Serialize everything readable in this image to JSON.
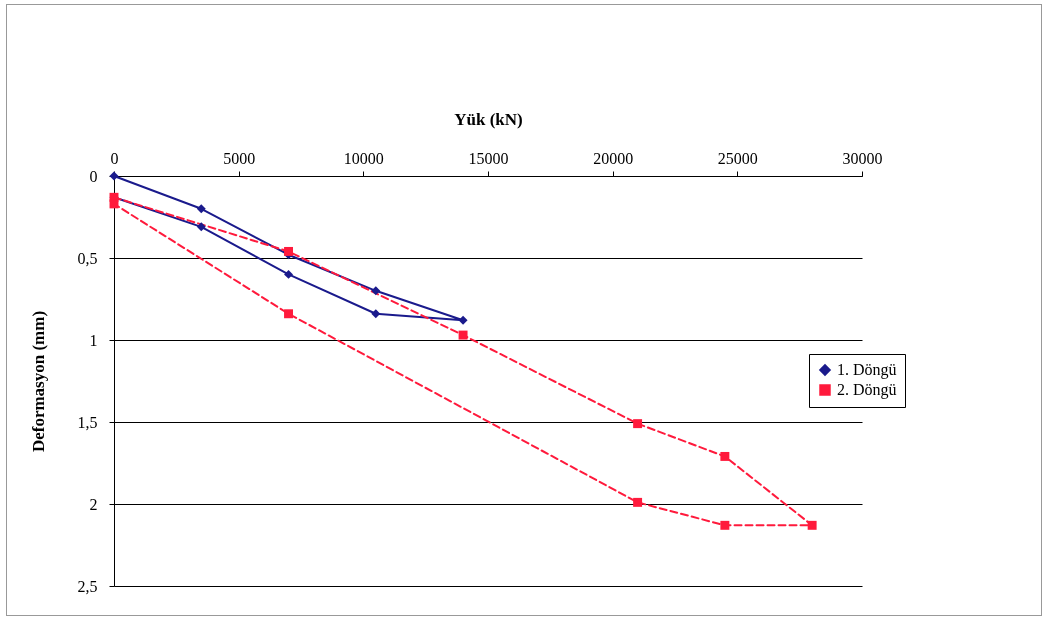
{
  "chart_data": {
    "type": "line",
    "xlabel": "Yük (kN)",
    "ylabel": "Deformasyon (mm)",
    "xlim": [
      0,
      30000
    ],
    "xticks": [
      0,
      5000,
      10000,
      15000,
      20000,
      25000,
      30000
    ],
    "ylim": [
      2.5,
      0
    ],
    "yticks": [
      0,
      {
        "value": 0.5,
        "label": "0,5"
      },
      1,
      {
        "value": 1.5,
        "label": "1,5"
      },
      2,
      {
        "value": 2.5,
        "label": "2,5"
      }
    ],
    "grid": "y",
    "legend": "right",
    "series": [
      {
        "name": "1. Döngü",
        "color": "#1a1a8c",
        "marker": "diamond",
        "line_style": "solid",
        "x": [
          0,
          3500,
          7000,
          10500,
          14000,
          10500,
          7000,
          3500,
          0
        ],
        "values": [
          0,
          0.2,
          0.48,
          0.7,
          0.88,
          0.84,
          0.6,
          0.31,
          0.13
        ]
      },
      {
        "name": "2. Döngü",
        "color": "#ff1a3c",
        "marker": "square",
        "line_style": "dashed",
        "x": [
          0,
          7000,
          14000,
          21000,
          24500,
          28000,
          24500,
          21000,
          7000,
          0
        ],
        "values": [
          0.13,
          0.46,
          0.97,
          1.51,
          1.71,
          2.13,
          2.13,
          1.99,
          0.84,
          0.17
        ]
      }
    ]
  }
}
